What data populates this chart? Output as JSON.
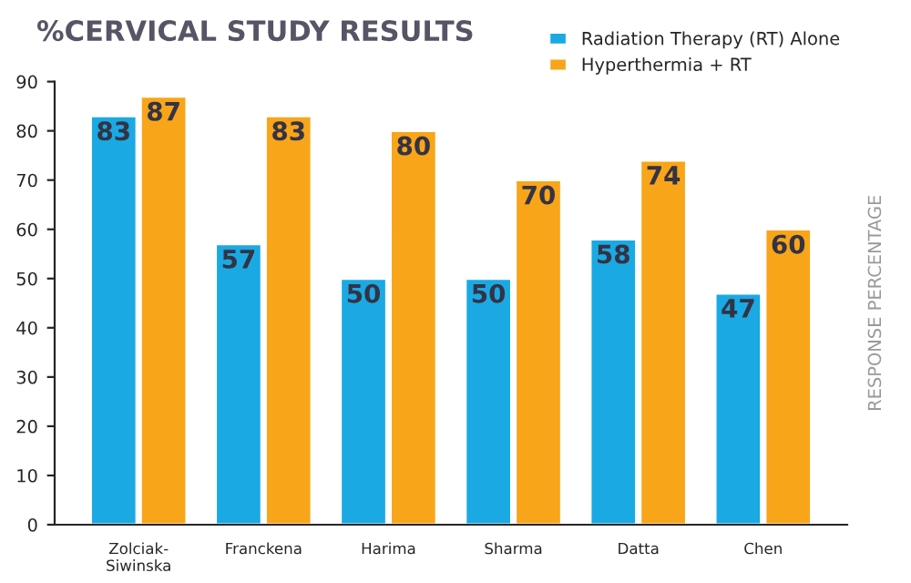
{
  "chart_data": {
    "type": "bar",
    "title": "%CERVICAL STUDY RESULTS",
    "ylabel": "RESPONSE PERCENTAGE",
    "categories": [
      "Zolciak-\nSiwinska",
      "Franckena",
      "Harima",
      "Sharma",
      "Datta",
      "Chen"
    ],
    "series": [
      {
        "name": "Radiation Therapy (RT) Alone",
        "color": "#1aa9e3",
        "values": [
          83,
          57,
          50,
          50,
          58,
          47
        ]
      },
      {
        "name": "Hyperthermia + RT",
        "color": "#f9a51a",
        "values": [
          87,
          83,
          80,
          70,
          74,
          60
        ]
      }
    ],
    "ylim": [
      0,
      90
    ],
    "yticks": [
      0,
      10,
      20,
      30,
      40,
      50,
      60,
      70,
      80,
      90
    ],
    "data_labels": true,
    "legend": "top right",
    "grid": false
  }
}
